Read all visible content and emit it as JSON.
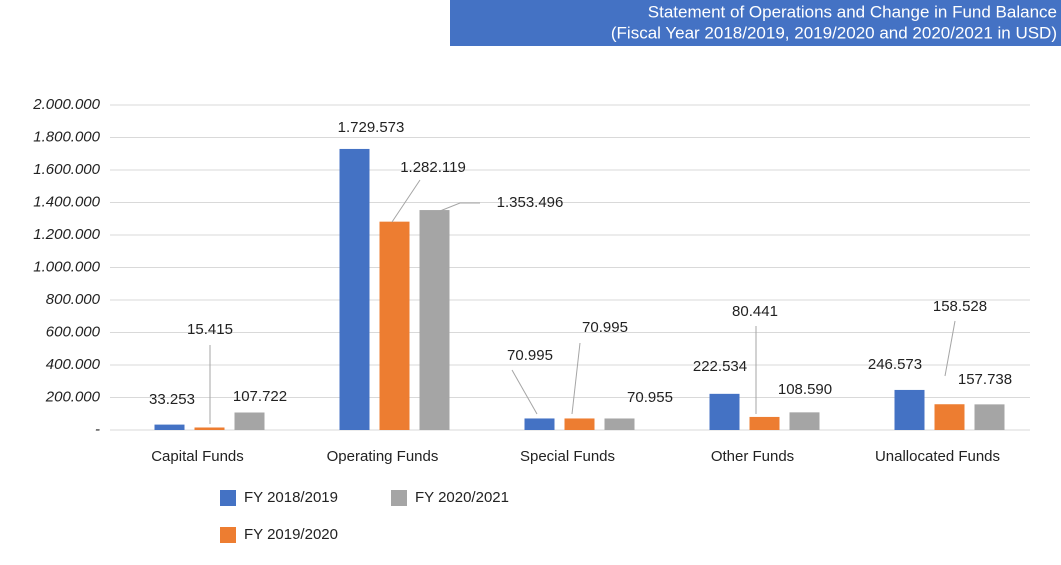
{
  "chart_data": {
    "type": "bar",
    "title": "Statement of Operations and Change in Fund Balance",
    "subtitle": "(Fiscal Year 2018/2019, 2019/2020 and 2020/2021 in USD)",
    "categories": [
      "Capital Funds",
      "Operating Funds",
      "Special Funds",
      "Other Funds",
      "Unallocated Funds"
    ],
    "series": [
      {
        "name": "FY 2018/2019",
        "color": "#4472c4",
        "values": [
          33253,
          1729573,
          70995,
          222534,
          246573
        ],
        "value_labels": [
          "33.253",
          "1.729.573",
          "70.995",
          "222.534",
          "246.573"
        ]
      },
      {
        "name": "FY 2019/2020",
        "color": "#ed7d31",
        "values": [
          15415,
          1282119,
          70995,
          80441,
          158528
        ],
        "value_labels": [
          "15.415",
          "1.282.119",
          "70.995",
          "80.441",
          "158.528"
        ]
      },
      {
        "name": "FY 2020/2021",
        "color": "#a5a5a5",
        "values": [
          107722,
          1353496,
          70955,
          108590,
          157738
        ],
        "value_labels": [
          "107.722",
          "1.353.496",
          "70.955",
          "108.590",
          "157.738"
        ]
      }
    ],
    "ylim": [
      0,
      2000000
    ],
    "yticks": [
      {
        "value": 0,
        "label": "-"
      },
      {
        "value": 200000,
        "label": "200.000"
      },
      {
        "value": 400000,
        "label": "400.000"
      },
      {
        "value": 600000,
        "label": "600.000"
      },
      {
        "value": 800000,
        "label": "800.000"
      },
      {
        "value": 1000000,
        "label": "1.000.000"
      },
      {
        "value": 1200000,
        "label": "1.200.000"
      },
      {
        "value": 1400000,
        "label": "1.400.000"
      },
      {
        "value": 1600000,
        "label": "1.600.000"
      },
      {
        "value": 1800000,
        "label": "1.800.000"
      },
      {
        "value": 2000000,
        "label": "2.000.000"
      }
    ],
    "grid": true
  }
}
